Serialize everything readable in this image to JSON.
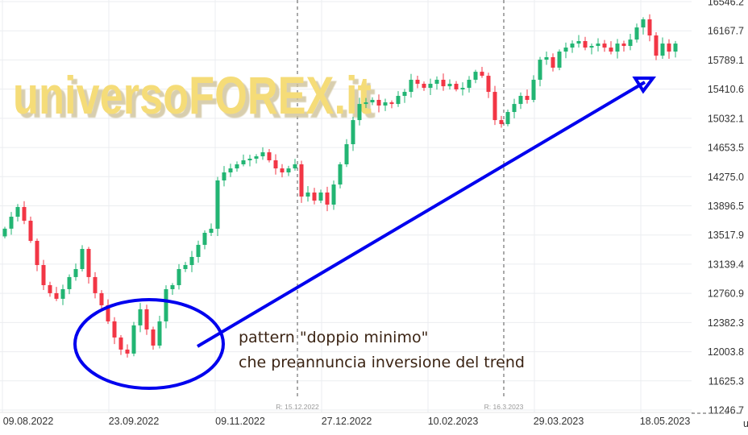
{
  "watermark": "universoFOREX.it",
  "annotation": {
    "line1": "pattern \"doppio minimo\"",
    "line2": "che preannuncia inversione del trend",
    "shape_color": "#0000ee"
  },
  "chart_data": {
    "type": "candlestick",
    "y_ticks": [
      "16546.2",
      "16167.7",
      "15789.1",
      "15410.6",
      "15032.1",
      "14653.5",
      "14275.0",
      "13896.5",
      "13517.9",
      "13139.4",
      "12760.9",
      "12382.3",
      "12003.8",
      "11625.3",
      "11246.7"
    ],
    "ylim": [
      11246.7,
      16546.2
    ],
    "x_ticks": [
      "09.08.2022",
      "23.09.2022",
      "09.11.2022",
      "27.12.2022",
      "10.02.2023",
      "29.03.2023",
      "18.05.2023"
    ],
    "x_tick_cut": "u",
    "markers": [
      {
        "label": "R: 15.12.2022"
      },
      {
        "label": "R: 16.3.2023"
      }
    ],
    "grid": true,
    "up_color": "#22b573",
    "down_color": "#f23645",
    "first_open": 13500,
    "close": [
      13600,
      13755,
      13881,
      13703,
      13442,
      13128,
      12867,
      12763,
      12690,
      12815,
      12972,
      13076,
      13337,
      12972,
      12763,
      12606,
      12397,
      12188,
      12031,
      11979,
      12345,
      12554,
      12292,
      12083,
      12397,
      12815,
      12867,
      13076,
      13128,
      13233,
      13390,
      13546,
      13599,
      14226,
      14330,
      14382,
      14435,
      14487,
      14508,
      14539,
      14591,
      14487,
      14382,
      14330,
      14382,
      14435,
      14017,
      14069,
      13964,
      14069,
      13912,
      14173,
      14435,
      14696,
      15009,
      15218,
      15239,
      15271,
      15198,
      15239,
      15218,
      15323,
      15375,
      15532,
      15480,
      15427,
      15480,
      15532,
      15448,
      15480,
      15407,
      15427,
      15532,
      15636,
      15584,
      15375,
      15009,
      14957,
      15114,
      15218,
      15323,
      15271,
      15532,
      15793,
      15825,
      15689,
      15898,
      15950,
      16002,
      16034,
      15950,
      15971,
      16002,
      15950,
      15898,
      16002,
      15971,
      16054,
      16211,
      16316,
      16107,
      15845,
      16002,
      15898,
      16002
    ]
  }
}
